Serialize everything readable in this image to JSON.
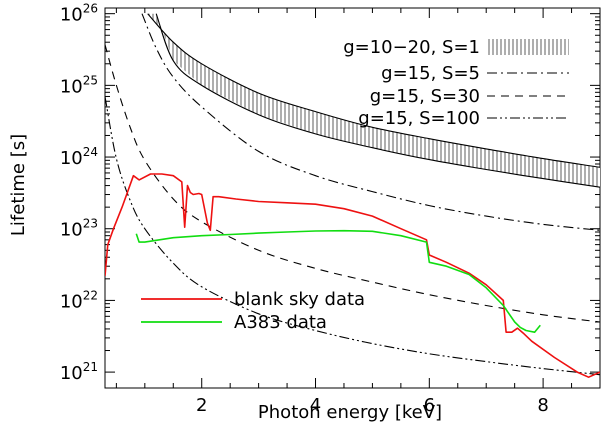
{
  "chart_data": {
    "type": "line",
    "xlabel": "Photon energy [keV]",
    "ylabel": "Lifetime [s]",
    "xlim": [
      0.3,
      9.0
    ],
    "ylim": [
      6e+20,
      1.2e+26
    ],
    "yscale": "log",
    "grid": false,
    "x_ticks": [
      2,
      4,
      6,
      8
    ],
    "y_ticks": [
      1e+21,
      1e+22,
      1e+23,
      1e+24,
      1e+25,
      1e+26
    ],
    "y_tick_labels": [
      {
        "base": "10",
        "exp": "21"
      },
      {
        "base": "10",
        "exp": "22"
      },
      {
        "base": "10",
        "exp": "23"
      },
      {
        "base": "10",
        "exp": "24"
      },
      {
        "base": "10",
        "exp": "25"
      },
      {
        "base": "10",
        "exp": "26"
      }
    ],
    "legend_top": {
      "placement": "top-right",
      "entries": [
        {
          "label": "g=10−20, S=1",
          "style": "band"
        },
        {
          "label": "g=15, S=5",
          "style": "dash-dot"
        },
        {
          "label": "g=15, S=30",
          "style": "dashed"
        },
        {
          "label": "g=15, S=100",
          "style": "dash-dot-dot"
        }
      ]
    },
    "legend_bottom": {
      "placement": "bottom-left",
      "entries": [
        {
          "label": "blank sky data",
          "color": "#ee1111"
        },
        {
          "label": "A383 data",
          "color": "#11dd11"
        }
      ]
    },
    "model_curves": [
      {
        "label": "g=10−20, S=1 (upper)",
        "style": "band-edge",
        "x": [
          1.05,
          1.5,
          2,
          3,
          4,
          5,
          6,
          7,
          8,
          9
        ],
        "y": [
          1e+26,
          4e+25,
          2e+25,
          7.8e+24,
          4.3e+24,
          2.6e+24,
          1.8e+24,
          1.3e+24,
          9.5e+23,
          7.2e+23
        ]
      },
      {
        "label": "g=10−20, S=1 (lower)",
        "style": "band-edge",
        "x": [
          1.2,
          1.5,
          2,
          3,
          4,
          5,
          6,
          7,
          8,
          9
        ],
        "y": [
          1e+26,
          2.2e+25,
          1e+25,
          3.9e+24,
          2.1e+24,
          1.35e+24,
          9.2e+23,
          6.7e+23,
          5e+23,
          3.8e+23
        ]
      },
      {
        "label": "g=15, S=5",
        "style": "dash-dot",
        "x": [
          0.95,
          1.2,
          1.5,
          2,
          3,
          4,
          5,
          6,
          7,
          8,
          9
        ],
        "y": [
          1e+26,
          3.3e+25,
          1.3e+25,
          5e+24,
          1.2e+24,
          5.5e+23,
          3.3e+23,
          2.1e+23,
          1.5e+23,
          1.15e+23,
          9.5e+22
        ]
      },
      {
        "label": "g=15, S=30",
        "style": "dashed",
        "x": [
          0.3,
          0.5,
          0.75,
          1,
          1.5,
          2,
          3,
          4,
          5,
          6,
          7,
          8,
          9
        ],
        "y": [
          3.7e+25,
          1e+25,
          2.5e+24,
          9e+23,
          2.6e+23,
          1.25e+23,
          5e+22,
          2.8e+22,
          1.8e+22,
          1.2e+22,
          8.5e+21,
          6.3e+21,
          5e+21
        ]
      },
      {
        "label": "g=15, S=100",
        "style": "dash-dot-dot",
        "x": [
          0.3,
          0.5,
          0.75,
          1,
          1.5,
          2,
          3,
          4,
          5,
          6,
          7,
          8,
          9
        ],
        "y": [
          7e+24,
          9.5e+23,
          2.4e+23,
          1e+23,
          3.3e+22,
          1.55e+22,
          6.5e+21,
          3.8e+21,
          2.5e+21,
          1.8e+21,
          1.4e+21,
          1.12e+21,
          9.2e+20
        ]
      }
    ],
    "data_series": [
      {
        "name": "blank sky data",
        "color": "#ee1111",
        "x": [
          0.3,
          0.35,
          0.45,
          0.6,
          0.8,
          0.9,
          1.1,
          1.3,
          1.5,
          1.65,
          1.7,
          1.75,
          1.8,
          1.85,
          1.95,
          2.0,
          2.1,
          2.15,
          2.2,
          2.3,
          2.6,
          3.0,
          3.5,
          4.0,
          4.5,
          5.0,
          5.5,
          5.95,
          6.0,
          6.3,
          6.7,
          7.0,
          7.3,
          7.35,
          7.45,
          7.55,
          7.65,
          7.8,
          8.2,
          8.6,
          8.8,
          9.0
        ],
        "y": [
          2.2e+22,
          6e+22,
          1e+23,
          2e+23,
          5.5e+23,
          4.8e+23,
          5.8e+23,
          5.8e+23,
          5.5e+23,
          4.5e+23,
          1.05e+23,
          4e+23,
          3.2e+23,
          3e+23,
          3.1e+23,
          3e+23,
          1.2e+23,
          9.5e+22,
          2.8e+23,
          2.8e+23,
          2.6e+23,
          2.4e+23,
          2.3e+23,
          2.2e+23,
          1.9e+23,
          1.5e+23,
          1e+23,
          7e+22,
          4.3e+22,
          3.4e+22,
          2.4e+22,
          1.65e+22,
          1e+22,
          3.6e+21,
          3.6e+21,
          4.1e+21,
          3.5e+21,
          2.7e+21,
          1.6e+21,
          1e+21,
          8.5e+20,
          1e+21
        ]
      },
      {
        "name": "A383 data",
        "color": "#11dd11",
        "x": [
          0.85,
          0.9,
          1.0,
          1.5,
          2.0,
          2.5,
          3.0,
          3.5,
          4.0,
          4.5,
          5.0,
          5.5,
          5.95,
          6.0,
          6.3,
          6.7,
          7.0,
          7.3,
          7.5,
          7.6,
          7.7,
          7.85,
          7.95
        ],
        "y": [
          8.5e+22,
          6.5e+22,
          6.5e+22,
          7.5e+22,
          8e+22,
          8.3e+22,
          8.7e+22,
          9e+22,
          9.3e+22,
          9.4e+22,
          9.2e+22,
          8e+22,
          6.5e+22,
          3.4e+22,
          3e+22,
          2.3e+22,
          1.5e+22,
          8.5e+21,
          5e+21,
          4.2e+21,
          3.8e+21,
          3.6e+21,
          4.5e+21
        ]
      }
    ]
  }
}
